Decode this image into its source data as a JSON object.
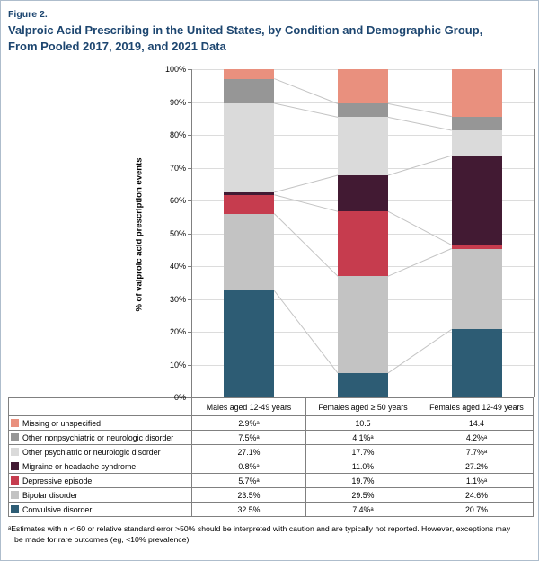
{
  "figure": {
    "label": "Figure 2.",
    "title_line1": "Valproic Acid Prescribing in the United States, by Condition and Demographic Group,",
    "title_line2": "From Pooled 2017, 2019, and 2021 Data",
    "footnote_line1": "ᵃEstimates with n < 60 or relative standard error >50% should be interpreted with caution and are typically not reported. However, exceptions may",
    "footnote_line2": "be made for rare outcomes (eg, <10% prevalence)."
  },
  "chart_data": {
    "type": "bar",
    "stacked": true,
    "title": "Valproic Acid Prescribing in the United States, by Condition and Demographic Group, From Pooled 2017, 2019, and 2021 Data",
    "ylabel": "% of valproic acid prescription events",
    "ylim": [
      0,
      100
    ],
    "ytick_step": 10,
    "grid": true,
    "categories": [
      "Males aged 12-49 years",
      "Females aged ≥ 50 years",
      "Females aged 12-49 years"
    ],
    "series_bottom_to_top": [
      {
        "name": "Convulsive disorder",
        "color": "#2d5c74",
        "values": [
          32.5,
          7.4,
          20.7
        ],
        "display": [
          "32.5%",
          "7.4%ᵃ",
          "20.7%"
        ]
      },
      {
        "name": "Bipolar disorder",
        "color": "#c3c3c3",
        "values": [
          23.5,
          29.5,
          24.6
        ],
        "display": [
          "23.5%",
          "29.5%",
          "24.6%"
        ]
      },
      {
        "name": "Depressive episode",
        "color": "#c63c4e",
        "values": [
          5.7,
          19.7,
          1.1
        ],
        "display": [
          "5.7%ᵃ",
          "19.7%",
          "1.1%ᵃ"
        ]
      },
      {
        "name": "Migraine or headache syndrome",
        "color": "#421a33",
        "values": [
          0.8,
          11.0,
          27.2
        ],
        "display": [
          "0.8%ᵃ",
          "11.0%",
          "27.2%"
        ]
      },
      {
        "name": "Other psychiatric or neurologic disorder",
        "color": "#dadada",
        "values": [
          27.1,
          17.7,
          7.7
        ],
        "display": [
          "27.1%",
          "17.7%",
          "7.7%ᵃ"
        ]
      },
      {
        "name": "Other nonpsychiatric or neurologic disorder",
        "color": "#969696",
        "values": [
          7.5,
          4.1,
          4.2
        ],
        "display": [
          "7.5%ᵃ",
          "4.1%ᵃ",
          "4.2%ᵃ"
        ]
      },
      {
        "name": "Missing or unspecified",
        "color": "#e9907e",
        "values": [
          2.9,
          10.5,
          14.4
        ],
        "display": [
          "2.9%ᵃ",
          "10.5",
          "14.4"
        ]
      }
    ],
    "table_row_order_top_to_bottom": [
      "Missing or unspecified",
      "Other nonpsychiatric or neurologic disorder",
      "Other psychiatric or neurologic disorder",
      "Migraine or headache syndrome",
      "Depressive episode",
      "Bipolar disorder",
      "Convulsive disorder"
    ]
  }
}
